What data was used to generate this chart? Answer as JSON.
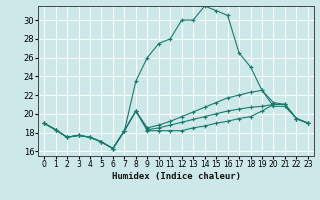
{
  "title": "",
  "xlabel": "Humidex (Indice chaleur)",
  "ylabel": "",
  "background_color": "#cce8e8",
  "grid_color": "#ffffff",
  "line_color": "#1a7a6e",
  "xlim": [
    -0.5,
    23.5
  ],
  "ylim": [
    15.5,
    31.5
  ],
  "xticks": [
    0,
    1,
    2,
    3,
    4,
    5,
    6,
    7,
    8,
    9,
    10,
    11,
    12,
    13,
    14,
    15,
    16,
    17,
    18,
    19,
    20,
    21,
    22,
    23
  ],
  "yticks": [
    16,
    18,
    20,
    22,
    24,
    26,
    28,
    30
  ],
  "series": [
    [
      19.0,
      18.3,
      17.5,
      17.7,
      17.5,
      17.0,
      16.3,
      18.2,
      20.3,
      18.2,
      18.2,
      18.2,
      18.2,
      18.5,
      18.7,
      19.0,
      19.2,
      19.5,
      19.7,
      20.3,
      21.0,
      21.0,
      19.5,
      19.0
    ],
    [
      19.0,
      18.3,
      17.5,
      17.7,
      17.5,
      17.0,
      16.3,
      18.2,
      23.5,
      26.0,
      27.5,
      28.0,
      30.0,
      30.0,
      31.5,
      31.0,
      30.5,
      26.5,
      25.0,
      22.5,
      20.8,
      20.8,
      19.5,
      19.0
    ],
    [
      19.0,
      18.3,
      17.5,
      17.7,
      17.5,
      17.0,
      16.3,
      18.2,
      20.3,
      18.5,
      18.8,
      19.2,
      19.7,
      20.2,
      20.7,
      21.2,
      21.7,
      22.0,
      22.3,
      22.5,
      21.2,
      21.0,
      19.5,
      19.0
    ],
    [
      19.0,
      18.3,
      17.5,
      17.7,
      17.5,
      17.0,
      16.3,
      18.2,
      20.3,
      18.3,
      18.5,
      18.8,
      19.1,
      19.4,
      19.7,
      20.0,
      20.3,
      20.5,
      20.7,
      20.8,
      21.0,
      21.0,
      19.5,
      19.0
    ]
  ]
}
